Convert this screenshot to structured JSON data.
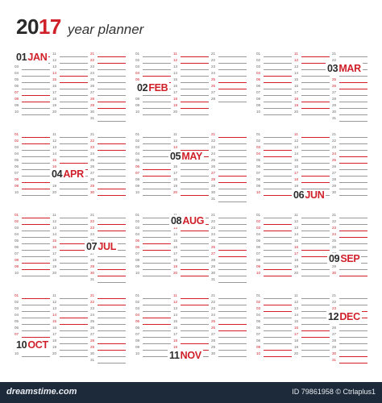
{
  "header": {
    "year_part1": "20",
    "year_part2": "17",
    "label": "year planner"
  },
  "colors": {
    "accent": "#d0202a",
    "text": "#2a2a2a",
    "footer_bg": "#1c2a3a"
  },
  "months": [
    {
      "num": "01",
      "name": "JAN",
      "days": 31
    },
    {
      "num": "02",
      "name": "FEB",
      "days": 28
    },
    {
      "num": "03",
      "name": "MAR",
      "days": 31
    },
    {
      "num": "04",
      "name": "APR",
      "days": 30
    },
    {
      "num": "05",
      "name": "MAY",
      "days": 31
    },
    {
      "num": "06",
      "name": "JUN",
      "days": 30
    },
    {
      "num": "07",
      "name": "JUL",
      "days": 31
    },
    {
      "num": "08",
      "name": "AUG",
      "days": 31
    },
    {
      "num": "09",
      "name": "SEP",
      "days": 30
    },
    {
      "num": "10",
      "name": "OCT",
      "days": 31
    },
    {
      "num": "11",
      "name": "NOV",
      "days": 30
    },
    {
      "num": "12",
      "name": "DEC",
      "days": 31
    }
  ],
  "footer": {
    "brand": "dreamstime.com",
    "credit": "ID 79861958 © Ctrlaplus1"
  }
}
